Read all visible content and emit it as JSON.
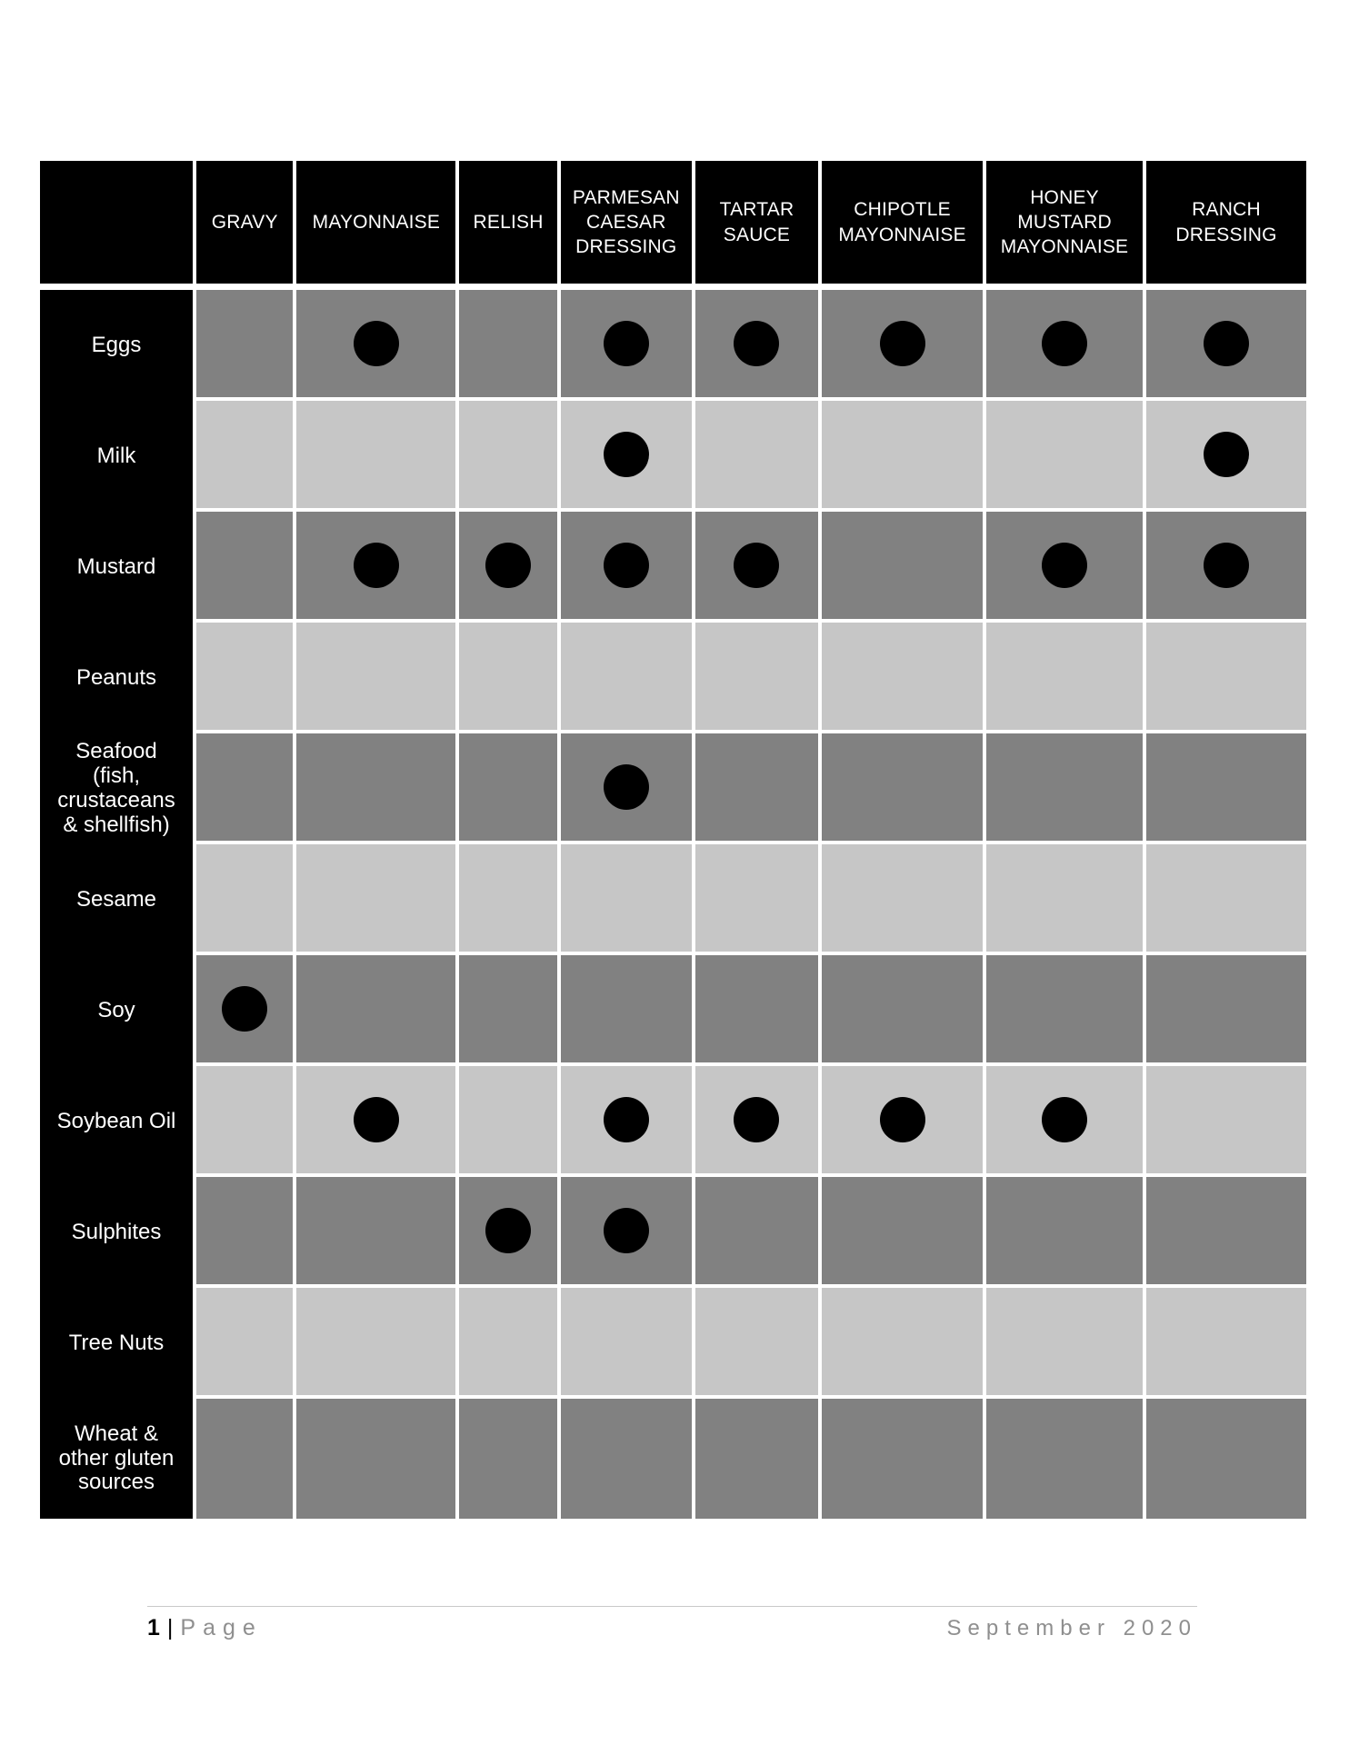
{
  "table": {
    "columns": [
      "GRAVY",
      "MAYONNAISE",
      "RELISH",
      "PARMESAN CAESAR DRESSING",
      "TARTAR SAUCE",
      "CHIPOTLE MAYONNAISE",
      "HONEY MUSTARD MAYONNAISE",
      "RANCH DRESSING"
    ],
    "rows": [
      {
        "label": "Eggs",
        "dots": [
          0,
          1,
          0,
          1,
          1,
          1,
          1,
          1
        ]
      },
      {
        "label": "Milk",
        "dots": [
          0,
          0,
          0,
          1,
          0,
          0,
          0,
          1
        ]
      },
      {
        "label": "Mustard",
        "dots": [
          0,
          1,
          1,
          1,
          1,
          0,
          1,
          1
        ]
      },
      {
        "label": "Peanuts",
        "dots": [
          0,
          0,
          0,
          0,
          0,
          0,
          0,
          0
        ]
      },
      {
        "label": "Seafood (fish, crustaceans & shellfish)",
        "dots": [
          0,
          0,
          0,
          1,
          0,
          0,
          0,
          0
        ]
      },
      {
        "label": "Sesame",
        "dots": [
          0,
          0,
          0,
          0,
          0,
          0,
          0,
          0
        ]
      },
      {
        "label": "Soy",
        "dots": [
          1,
          0,
          0,
          0,
          0,
          0,
          0,
          0
        ]
      },
      {
        "label": "Soybean Oil",
        "dots": [
          0,
          1,
          0,
          1,
          1,
          1,
          1,
          0
        ]
      },
      {
        "label": "Sulphites",
        "dots": [
          0,
          0,
          1,
          1,
          0,
          0,
          0,
          0
        ]
      },
      {
        "label": "Tree Nuts",
        "dots": [
          0,
          0,
          0,
          0,
          0,
          0,
          0,
          0
        ]
      },
      {
        "label": "Wheat & other gluten sources",
        "dots": [
          0,
          0,
          0,
          0,
          0,
          0,
          0,
          0
        ]
      }
    ]
  },
  "footer": {
    "page_number": "1",
    "separator": "|",
    "page_word": "Page",
    "date": "September 2020"
  },
  "colors": {
    "header_bg": "#000000",
    "header_text": "#ffffff",
    "row_dark": "#818181",
    "row_light": "#c6c6c6",
    "dot": "#000000",
    "footer_text": "#8f8f8f",
    "footer_line": "#c9c9c9"
  }
}
